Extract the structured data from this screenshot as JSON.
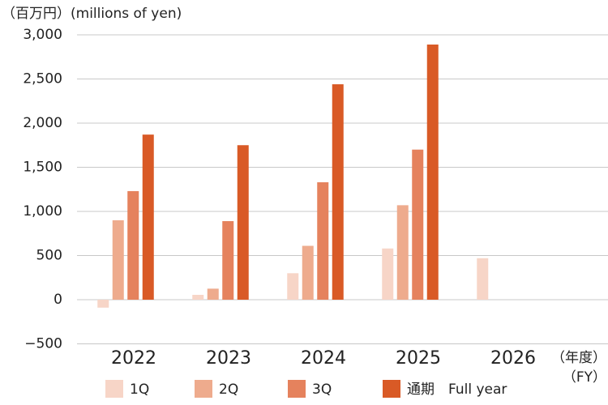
{
  "chart_data": {
    "type": "bar",
    "y_label": "（百万円）(millions of yen)",
    "x_unit": [
      "（年度）",
      "（FY）"
    ],
    "categories": [
      "2022",
      "2023",
      "2024",
      "2025",
      "2026"
    ],
    "series": [
      {
        "name": "1Q",
        "color": "#f7d5c7",
        "values": [
          -90,
          55,
          300,
          580,
          470
        ]
      },
      {
        "name": "2Q",
        "color": "#eeab8d",
        "values": [
          900,
          125,
          610,
          1070,
          null
        ]
      },
      {
        "name": "3Q",
        "color": "#e5825d",
        "values": [
          1230,
          890,
          1330,
          1700,
          null
        ]
      },
      {
        "name": "通期　Full year",
        "color": "#d95a26",
        "values": [
          1870,
          1750,
          2440,
          2890,
          null
        ]
      }
    ],
    "ylim": [
      -500,
      3000
    ],
    "yticks": [
      {
        "value": -500,
        "label": "−500"
      },
      0,
      500,
      {
        "value": 1000,
        "label": "1,000"
      },
      {
        "value": 1500,
        "label": "1,500"
      },
      {
        "value": 2000,
        "label": "2,000"
      },
      {
        "value": 2500,
        "label": "2,500"
      },
      {
        "value": 3000,
        "label": "3,000"
      }
    ],
    "grid": true
  }
}
